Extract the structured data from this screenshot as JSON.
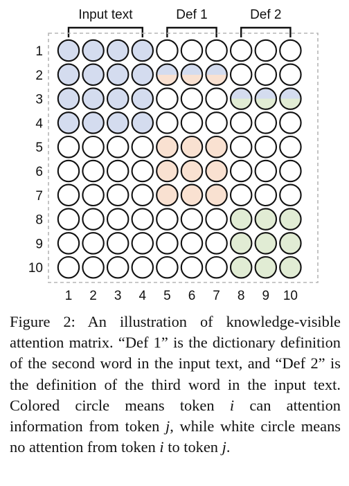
{
  "groups": [
    {
      "label": "Input text",
      "cols": [
        1,
        4
      ]
    },
    {
      "label": "Def 1",
      "cols": [
        5,
        7
      ]
    },
    {
      "label": "Def 2",
      "cols": [
        8,
        10
      ]
    }
  ],
  "row_labels": [
    "1",
    "2",
    "3",
    "4",
    "5",
    "6",
    "7",
    "8",
    "9",
    "10"
  ],
  "col_labels": [
    "1",
    "2",
    "3",
    "4",
    "5",
    "6",
    "7",
    "8",
    "9",
    "10"
  ],
  "colors": {
    "blue": "#d4dcef",
    "orange": "#f9e1d1",
    "green": "#e1ecd4",
    "white": "#ffffff",
    "stroke": "#111111",
    "dash": "#b5b5b5"
  },
  "matrix": [
    [
      "b",
      "b",
      "b",
      "b",
      "w",
      "w",
      "w",
      "w",
      "w",
      "w"
    ],
    [
      "b",
      "b",
      "b",
      "b",
      "bo",
      "bo",
      "bo",
      "w",
      "w",
      "w"
    ],
    [
      "b",
      "b",
      "b",
      "b",
      "w",
      "w",
      "w",
      "bg",
      "bg",
      "bg"
    ],
    [
      "b",
      "b",
      "b",
      "b",
      "w",
      "w",
      "w",
      "w",
      "w",
      "w"
    ],
    [
      "w",
      "w",
      "w",
      "w",
      "o",
      "o",
      "o",
      "w",
      "w",
      "w"
    ],
    [
      "w",
      "w",
      "w",
      "w",
      "o",
      "o",
      "o",
      "w",
      "w",
      "w"
    ],
    [
      "w",
      "w",
      "w",
      "w",
      "o",
      "o",
      "o",
      "w",
      "w",
      "w"
    ],
    [
      "w",
      "w",
      "w",
      "w",
      "w",
      "w",
      "w",
      "g",
      "g",
      "g"
    ],
    [
      "w",
      "w",
      "w",
      "w",
      "w",
      "w",
      "w",
      "g",
      "g",
      "g"
    ],
    [
      "w",
      "w",
      "w",
      "w",
      "w",
      "w",
      "w",
      "g",
      "g",
      "g"
    ]
  ],
  "caption": {
    "text1": "Figure 2:  An illustration of knowledge-visible attention matrix. “Def 1” is the dictionary definition of the second word in the input text, and “Def 2” is the definition of the third word in the input text.  Colored circle means token ",
    "var_i": "i",
    "text2": " can attention information from token ",
    "var_j": "j",
    "text3": ", while white circle means no attention from token ",
    "var_i2": "i",
    "text4": " to token ",
    "var_j2": "j",
    "text5": "."
  }
}
